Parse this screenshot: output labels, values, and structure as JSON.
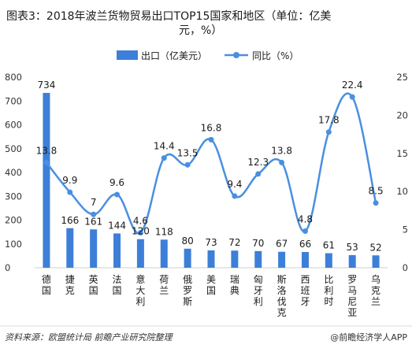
{
  "chart_data": {
    "type": "bar+line",
    "title_lines": [
      "图表3：2018年波兰货物贸易出口TOP15国家和地区（单位：亿美",
      "元，%）"
    ],
    "categories": [
      "德国",
      "捷克",
      "英国",
      "法国",
      "意大利",
      "荷兰",
      "俄罗斯",
      "美国",
      "瑞典",
      "匈牙利",
      "斯洛伐克",
      "西班牙",
      "比利时",
      "罗马尼亚",
      "乌克兰"
    ],
    "series": [
      {
        "name": "出口（亿美元）",
        "type": "bar",
        "axis": "left",
        "color": "#3d7fd8",
        "values": [
          734,
          166,
          161,
          144,
          120,
          118,
          80,
          73,
          72,
          70,
          67,
          66,
          61,
          53,
          52
        ]
      },
      {
        "name": "同比（%）",
        "type": "line",
        "axis": "right",
        "color": "#4a8fe0",
        "values": [
          13.8,
          9.9,
          7,
          9.6,
          4.6,
          14.4,
          13.5,
          16.8,
          9.4,
          12.3,
          13.8,
          4.8,
          17.8,
          22.4,
          8.5
        ]
      }
    ],
    "y_left": {
      "min": 0,
      "max": 800,
      "ticks": [
        0,
        100,
        200,
        300,
        400,
        500,
        600,
        700,
        800
      ]
    },
    "y_right": {
      "min": 0,
      "max": 25,
      "ticks": [
        0,
        5,
        10,
        15,
        20,
        25
      ]
    },
    "legend_position": "top-center",
    "grid": false
  },
  "footer": {
    "source": "资料来源：欧盟统计局 前瞻产业研究院整理",
    "brand": "@前瞻经济学人APP"
  }
}
